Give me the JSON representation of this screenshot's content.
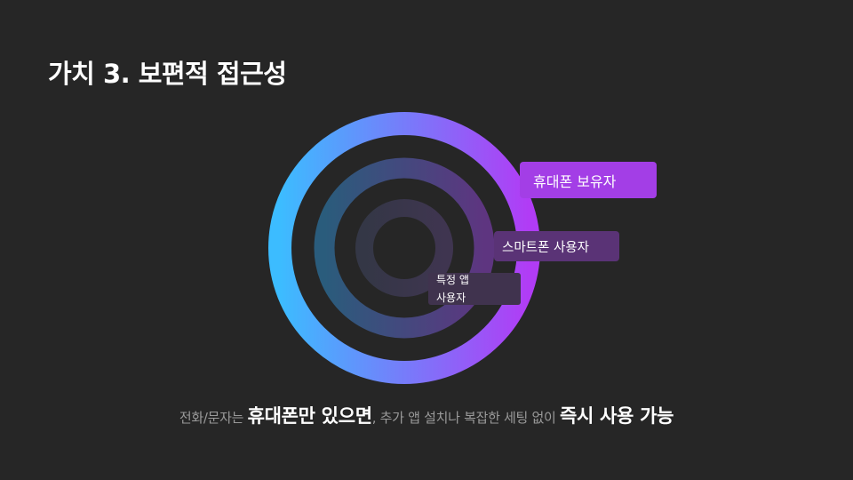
{
  "title": "가치 3. 보편적 접근성",
  "diagram": {
    "rings": [
      {
        "label": "휴대폰 보유자"
      },
      {
        "label": "스마트폰 사용자"
      },
      {
        "label_line1": "특정 앱",
        "label_line2": "사용자"
      }
    ]
  },
  "caption": {
    "part1": "전화/문자는 ",
    "part2": "휴대폰만 있으면",
    "part3": ", 추가 앱 설치나 복잡한 세팅 없이 ",
    "part4": "즉시 사용 가능"
  },
  "colors": {
    "background": "#262626",
    "ring_outer_start": "#3cbcff",
    "ring_outer_end": "#b13cf5",
    "label_outer": "#a33ee6",
    "label_middle": "#5a3376",
    "label_inner": "#40334e",
    "caption_gray": "#9a9a9a"
  }
}
